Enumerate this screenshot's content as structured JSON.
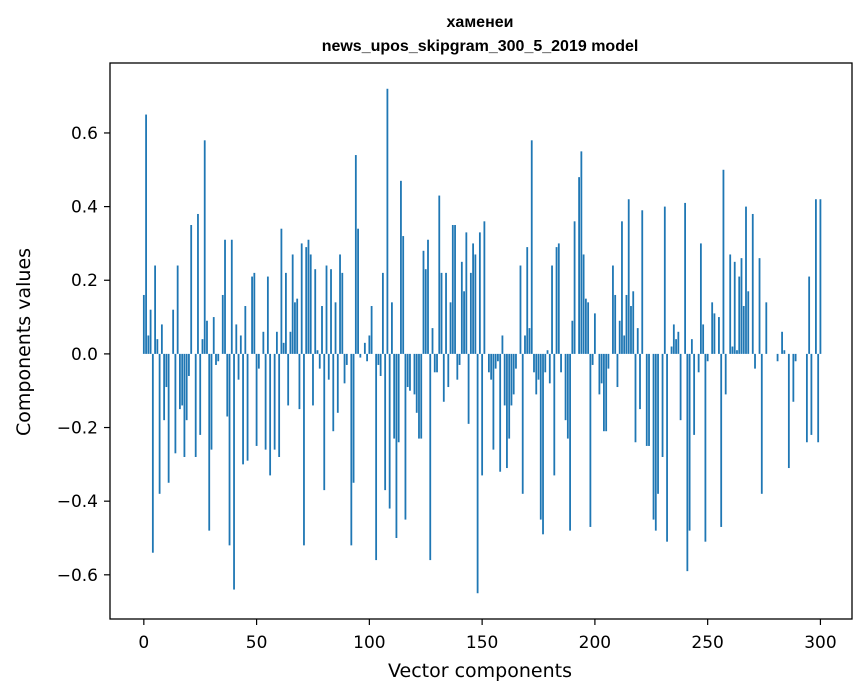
{
  "chart_data": {
    "type": "bar",
    "title_line1": "хаменеи",
    "title_line2": "news_upos_skipgram_300_5_2019 model",
    "xlabel": "Vector components",
    "ylabel": "Components values",
    "xlim": [
      -15,
      314
    ],
    "ylim": [
      -0.72,
      0.79
    ],
    "x_ticks": [
      0,
      50,
      100,
      150,
      200,
      250,
      300
    ],
    "x_tick_labels": [
      "0",
      "50",
      "100",
      "150",
      "200",
      "250",
      "300"
    ],
    "y_ticks": [
      -0.6,
      -0.4,
      -0.2,
      0.0,
      0.2,
      0.4,
      0.6
    ],
    "y_tick_labels": [
      "−0.6",
      "−0.4",
      "−0.2",
      "0.0",
      "0.2",
      "0.4",
      "0.6"
    ],
    "bar_color": "#1f77b4",
    "grid": false,
    "values": [
      0.16,
      0.65,
      0.05,
      0.12,
      -0.54,
      0.24,
      0.04,
      -0.38,
      0.08,
      -0.18,
      -0.09,
      -0.35,
      0.0,
      0.12,
      -0.27,
      0.24,
      -0.15,
      -0.14,
      -0.28,
      -0.18,
      -0.06,
      0.35,
      0.0,
      -0.28,
      0.38,
      -0.22,
      0.04,
      0.58,
      0.09,
      -0.48,
      -0.26,
      0.1,
      -0.03,
      -0.02,
      0.0,
      0.16,
      0.31,
      -0.17,
      -0.52,
      0.31,
      -0.64,
      0.08,
      -0.07,
      0.05,
      -0.3,
      0.13,
      -0.29,
      0.0,
      0.21,
      0.22,
      -0.25,
      -0.04,
      0.0,
      0.06,
      -0.26,
      0.21,
      -0.33,
      0.0,
      -0.26,
      0.06,
      -0.28,
      0.34,
      0.03,
      0.22,
      -0.14,
      0.06,
      0.27,
      0.14,
      0.15,
      -0.15,
      0.3,
      -0.52,
      0.29,
      0.31,
      0.27,
      -0.14,
      0.23,
      0.01,
      -0.04,
      0.13,
      -0.37,
      0.24,
      -0.07,
      0.23,
      -0.21,
      0.14,
      -0.16,
      0.27,
      0.22,
      -0.08,
      -0.03,
      0.0,
      -0.52,
      -0.35,
      0.54,
      0.34,
      -0.01,
      0.0,
      0.03,
      -0.02,
      0.05,
      0.13,
      0.0,
      -0.56,
      -0.03,
      -0.06,
      0.22,
      -0.37,
      0.72,
      -0.42,
      0.14,
      -0.23,
      -0.5,
      -0.24,
      0.47,
      0.32,
      -0.45,
      -0.09,
      -0.1,
      0.0,
      -0.11,
      -0.16,
      -0.23,
      -0.23,
      0.28,
      0.23,
      0.31,
      -0.56,
      0.07,
      -0.05,
      -0.05,
      0.43,
      0.22,
      -0.13,
      0.22,
      -0.09,
      0.14,
      0.35,
      0.35,
      -0.07,
      -0.03,
      0.25,
      0.17,
      0.33,
      -0.19,
      0.22,
      0.3,
      0.27,
      -0.65,
      0.33,
      -0.33,
      0.36,
      0.0,
      -0.05,
      -0.07,
      -0.26,
      -0.04,
      -0.02,
      -0.32,
      0.05,
      -0.14,
      -0.31,
      -0.23,
      -0.14,
      -0.11,
      -0.04,
      0.0,
      0.24,
      -0.38,
      0.05,
      0.29,
      0.07,
      0.58,
      -0.05,
      -0.11,
      -0.07,
      -0.45,
      -0.49,
      -0.05,
      0.01,
      -0.08,
      0.24,
      -0.33,
      0.29,
      0.3,
      -0.05,
      0.0,
      -0.18,
      -0.23,
      -0.48,
      0.09,
      0.36,
      0.0,
      0.48,
      0.55,
      0.27,
      0.15,
      0.14,
      -0.47,
      -0.03,
      0.11,
      0.0,
      -0.11,
      -0.08,
      -0.21,
      -0.21,
      -0.04,
      0.0,
      0.24,
      0.16,
      -0.09,
      0.09,
      0.36,
      0.05,
      0.16,
      0.42,
      0.13,
      0.17,
      -0.24,
      0.07,
      -0.15,
      0.39,
      0.0,
      -0.25,
      -0.25,
      0.0,
      -0.45,
      -0.48,
      -0.38,
      0.0,
      -0.28,
      0.4,
      -0.51,
      0.0,
      0.02,
      0.08,
      0.04,
      0.06,
      -0.18,
      0.0,
      0.41,
      -0.59,
      -0.48,
      0.04,
      -0.22,
      0.0,
      -0.05,
      0.3,
      0.08,
      -0.51,
      -0.02,
      0.0,
      0.14,
      0.11,
      0.0,
      0.1,
      -0.47,
      0.5,
      -0.11,
      0.0,
      0.27,
      0.02,
      0.25,
      0.01,
      0.21,
      0.26,
      0.13,
      0.4,
      0.17,
      0.0,
      0.38,
      -0.04,
      0.0,
      0.26,
      -0.38,
      0.0,
      0.14,
      0.0,
      0.0,
      0.0,
      0.0,
      -0.02,
      0.0,
      0.06,
      0.01,
      0.0,
      -0.31,
      0.0,
      -0.13,
      -0.02,
      0.0,
      0.0,
      0.0,
      0.0,
      -0.24,
      0.21,
      -0.22,
      0.0,
      0.42,
      -0.24,
      0.42,
      0.0,
      0.0,
      0.0,
      0.0,
      0.0,
      0.0,
      0.0
    ]
  }
}
